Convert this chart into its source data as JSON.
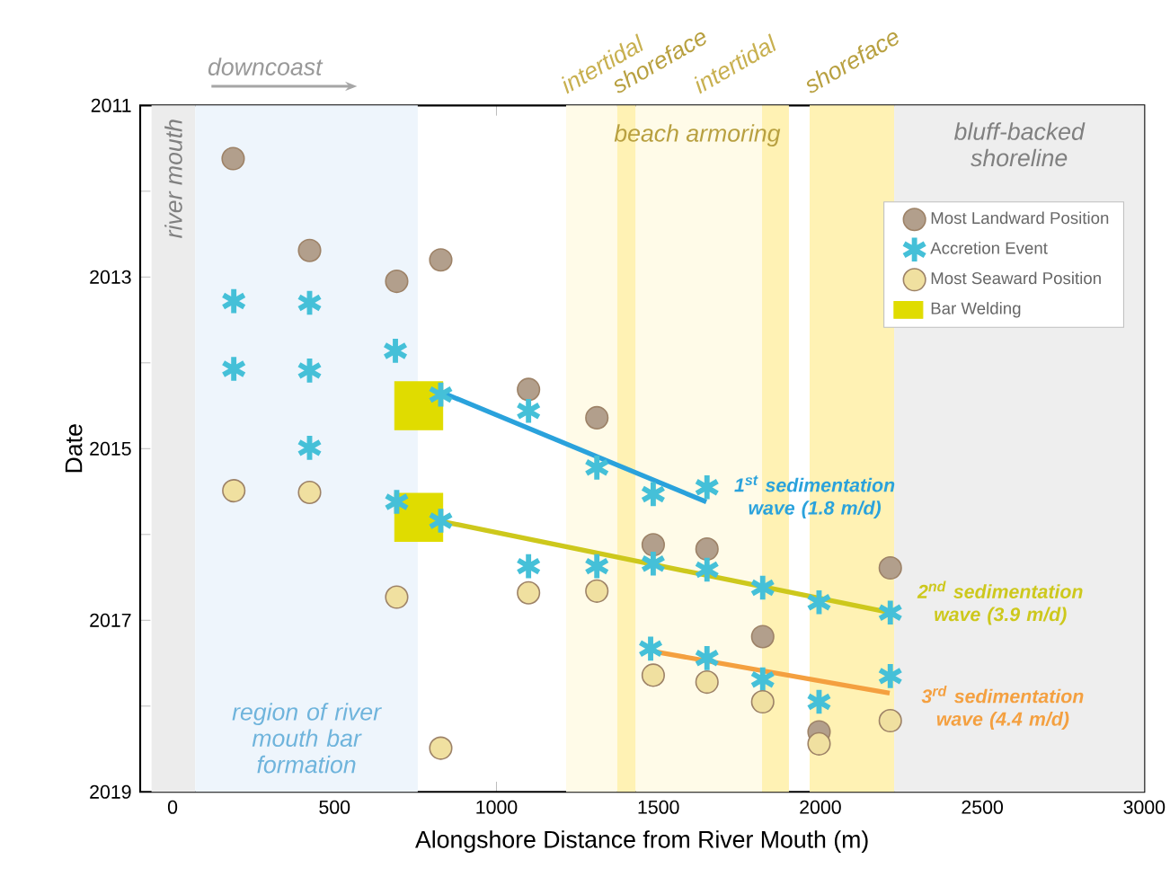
{
  "chart_data": {
    "type": "scatter",
    "xlabel": "Alongshore Distance from River Mouth (m)",
    "ylabel": "Date",
    "xlim": [
      -100,
      3000
    ],
    "xticks": [
      0,
      500,
      1000,
      1500,
      2000,
      2500,
      3000
    ],
    "ylim": [
      2019,
      2011
    ],
    "yticks": [
      2011,
      {
        "value": 2012,
        "label": null
      },
      2013,
      {
        "value": 2014,
        "label": null
      },
      2015,
      {
        "value": 2016,
        "label": null
      },
      2017,
      {
        "value": 2018,
        "label": null
      },
      2019
    ],
    "legend": "top right",
    "series": [
      {
        "name": "Most Landward Position",
        "color": "#b29f8c",
        "marker": "circle",
        "x": [
          187,
          423,
          692,
          828,
          1099,
          1310,
          1484,
          1650,
          2216,
          1822,
          1996
        ],
        "values": [
          2011.62,
          2012.69,
          2013.05,
          2012.8,
          2014.31,
          2014.64,
          2016.12,
          2016.17,
          2016.39,
          2017.19,
          2018.3
        ]
      },
      {
        "name": "Accretion Event",
        "color": "#45c0d8",
        "marker": "cross",
        "x": [
          189,
          423,
          189,
          423,
          688,
          828,
          1099,
          423,
          692,
          828,
          1099,
          1310,
          1310,
          1484,
          1650,
          1484,
          1650,
          1822,
          1996,
          2216,
          1476,
          1650,
          1822,
          1996,
          2216
        ],
        "values": [
          2013.28,
          2013.3,
          2014.07,
          2014.09,
          2013.86,
          2014.37,
          2014.56,
          2014.99,
          2015.62,
          2015.84,
          2016.37,
          2016.37,
          2015.22,
          2015.53,
          2015.45,
          2016.34,
          2016.41,
          2016.62,
          2016.79,
          2016.91,
          2017.33,
          2017.44,
          2017.69,
          2017.95,
          2017.65
        ]
      },
      {
        "name": "Most Seaward Position",
        "color": "#f0e0a0",
        "marker": "circle",
        "x": [
          189,
          423,
          692,
          1099,
          1310,
          828,
          1484,
          1650,
          1822,
          1996,
          2216
        ],
        "values": [
          2015.49,
          2015.51,
          2016.73,
          2016.68,
          2016.66,
          2018.49,
          2017.64,
          2017.72,
          2017.95,
          2018.44,
          2018.17
        ]
      },
      {
        "name": "Bar Welding",
        "color": "#e0dc00",
        "marker": "square",
        "x": [
          760,
          760
        ],
        "values": [
          2014.5,
          2015.8
        ]
      },
      {
        "type": "line",
        "name": "1$^{st}$ sedimentation wave (1.8 m/d)",
        "color": "#2aa2dc",
        "x": [
          835,
          1648
        ],
        "values": [
          2014.35,
          2015.62
        ]
      },
      {
        "type": "line",
        "name": "2$^{nd}$ sedimentation wave (3.9 m/d)",
        "color": "#cdc81c",
        "x": [
          822,
          2214
        ],
        "values": [
          2015.84,
          2016.91
        ]
      },
      {
        "type": "line",
        "name": "3$^{rd}$ sedimentation wave (4.4 m/d)",
        "color": "#f4a040",
        "x": [
          1495,
          2214
        ],
        "values": [
          2017.37,
          2017.85
        ]
      }
    ],
    "bands": [
      {
        "axis": "x",
        "from": -65,
        "to": 70,
        "label": "river mouth",
        "color": "#ececec"
      },
      {
        "axis": "x",
        "from": 70,
        "to": 757,
        "label": "region of river mouth bar formation",
        "color": "#eef5fc"
      },
      {
        "axis": "x",
        "from": 1215,
        "to": 1373,
        "label": "intertidal",
        "color": "#fffbe8"
      },
      {
        "axis": "x",
        "from": 1373,
        "to": 1430,
        "label": "shoreface",
        "color": "#fff2b4"
      },
      {
        "axis": "x",
        "from": 1430,
        "to": 1820,
        "label": "intertidal",
        "color": "#fffbe8"
      },
      {
        "axis": "x",
        "from": 1820,
        "to": 1903,
        "color": "#fff2b4"
      },
      {
        "axis": "x",
        "from": 1967,
        "to": 2228,
        "label": "shoreface",
        "color": "#fff2b4"
      },
      {
        "axis": "x",
        "from": 2228,
        "to": 3000,
        "label": "bluff-backed shoreline",
        "color": "#eeeeee"
      }
    ],
    "annotations": [
      "downcoast",
      "beach armoring"
    ]
  }
}
